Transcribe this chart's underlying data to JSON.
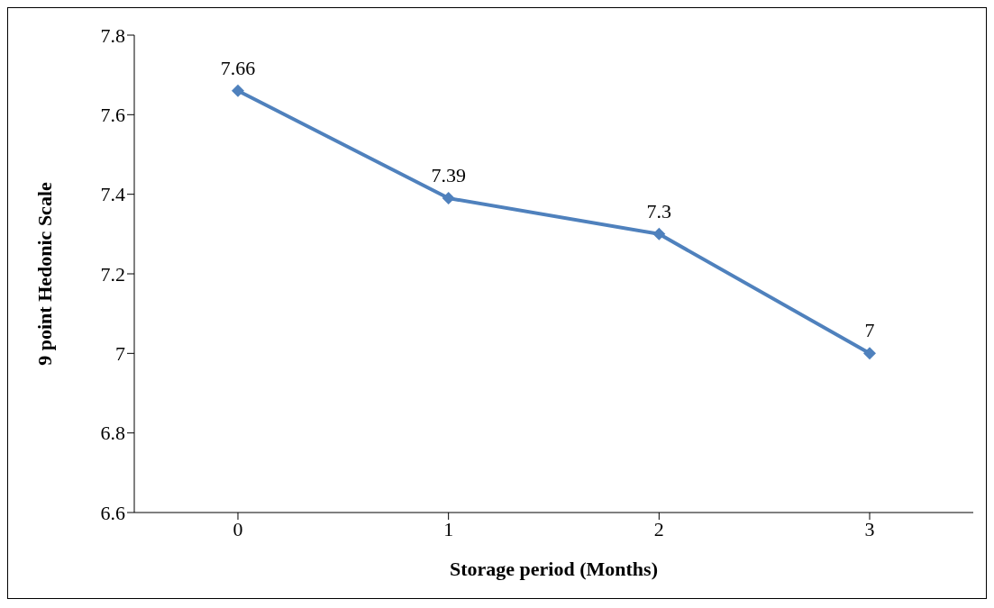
{
  "chart_data": {
    "type": "line",
    "xlabel": "Storage period (Months)",
    "ylabel": "9 point Hedonic Scale",
    "categories": [
      "0",
      "1",
      "2",
      "3"
    ],
    "series": [
      {
        "color": "#4f81bd",
        "values": [
          7.66,
          7.39,
          7.3,
          7
        ]
      }
    ],
    "ylim": [
      6.6,
      7.8
    ],
    "yticks": [
      6.6,
      6.8,
      7,
      7.2,
      7.4,
      7.6,
      7.8
    ],
    "data_labels": true,
    "marker": "diamond",
    "line_style": "solid",
    "grid": false,
    "legend": false
  }
}
